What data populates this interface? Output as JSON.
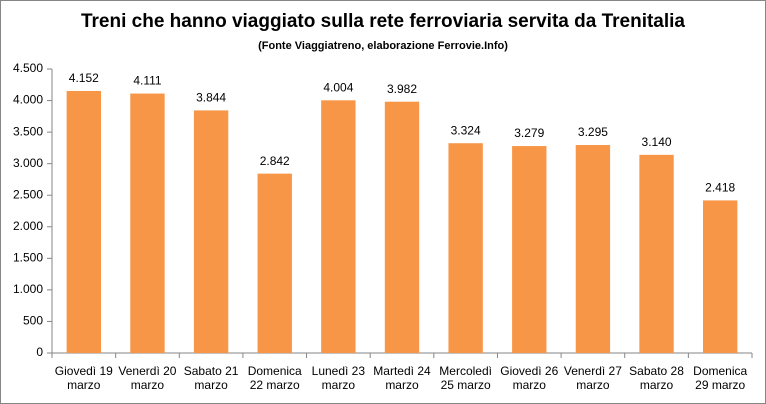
{
  "chart_data": {
    "type": "bar",
    "title": "Treni che hanno viaggiato sulla rete ferroviaria servita da Trenitalia",
    "subtitle": "(Fonte Viaggiatreno, elaborazione Ferrovie.Info)",
    "categories": [
      "Giovedì 19 marzo",
      "Venerdì 20 marzo",
      "Sabato 21 marzo",
      "Domenica 22 marzo",
      "Lunedì 23 marzo",
      "Martedì 24 marzo",
      "Mercoledì 25 marzo",
      "Giovedì 26 marzo",
      "Venerdì 27 marzo",
      "Sabato 28 marzo",
      "Domenica 29 marzo"
    ],
    "values": [
      4152,
      4111,
      3844,
      2842,
      4004,
      3982,
      3324,
      3279,
      3295,
      3140,
      2418
    ],
    "value_labels": [
      "4.152",
      "4.111",
      "3.844",
      "2.842",
      "4.004",
      "3.982",
      "3.324",
      "3.279",
      "3.295",
      "3.140",
      "2.418"
    ],
    "color": "#f79646",
    "ylim": [
      0,
      4500
    ],
    "yticks": [
      0,
      500,
      {
        "value": 1000,
        "label": "1.000"
      },
      {
        "value": 1500,
        "label": "1.500"
      },
      {
        "value": 2000,
        "label": "2.000"
      },
      {
        "value": 2500,
        "label": "2.500"
      },
      {
        "value": 3000,
        "label": "3.000"
      },
      {
        "value": 3500,
        "label": "3.500"
      },
      {
        "value": 4000,
        "label": "4.000"
      },
      {
        "value": 4500,
        "label": "4.500"
      }
    ],
    "grid": false
  }
}
